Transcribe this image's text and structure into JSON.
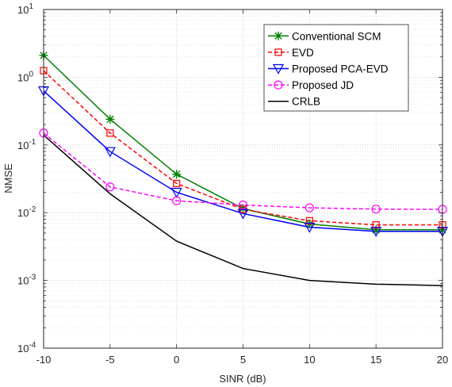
{
  "chart_data": {
    "type": "line",
    "xlabel": "SINR (dB)",
    "ylabel": "NMSE",
    "x": [
      -10,
      -5,
      0,
      5,
      10,
      15,
      20
    ],
    "xlim": [
      -10,
      20
    ],
    "ylim": [
      0.0001,
      10
    ],
    "yscale": "log",
    "grid": true,
    "legend_position": "top-right",
    "x_ticks": [
      "-10",
      "-5",
      "0",
      "5",
      "10",
      "15",
      "20"
    ],
    "y_ticks": [
      {
        "base": "10",
        "exp": "-4"
      },
      {
        "base": "10",
        "exp": "-3"
      },
      {
        "base": "10",
        "exp": "-2"
      },
      {
        "base": "10",
        "exp": "-1"
      },
      {
        "base": "10",
        "exp": "0"
      },
      {
        "base": "10",
        "exp": "1"
      }
    ],
    "series": [
      {
        "name": "Conventional SCM",
        "values": [
          2.1,
          0.24,
          0.037,
          0.0115,
          0.0068,
          0.0056,
          0.0056
        ],
        "color": "#007f00",
        "dash": "solid",
        "marker": "asterisk"
      },
      {
        "name": "EVD",
        "values": [
          1.25,
          0.15,
          0.027,
          0.0112,
          0.0076,
          0.0066,
          0.0066
        ],
        "color": "#ff0000",
        "dash": "dashed",
        "marker": "square"
      },
      {
        "name": "Proposed PCA-EVD",
        "values": [
          0.63,
          0.08,
          0.02,
          0.0097,
          0.0061,
          0.0053,
          0.0053
        ],
        "color": "#0000ff",
        "dash": "solid",
        "marker": "triangle-down"
      },
      {
        "name": "Proposed JD",
        "values": [
          0.15,
          0.024,
          0.015,
          0.013,
          0.0118,
          0.0113,
          0.0112
        ],
        "color": "#ff00ff",
        "dash": "dashed",
        "marker": "circle"
      },
      {
        "name": "CRLB",
        "values": [
          0.14,
          0.019,
          0.0038,
          0.0015,
          0.001,
          0.00088,
          0.00084
        ],
        "color": "#000000",
        "dash": "solid",
        "marker": "none"
      }
    ]
  }
}
